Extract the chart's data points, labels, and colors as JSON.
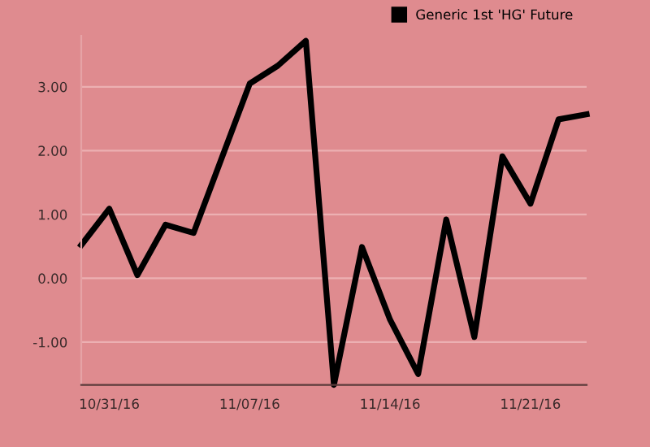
{
  "chart_data": {
    "type": "line",
    "categories": [
      null,
      "10/31/16",
      null,
      null,
      null,
      null,
      "11/07/16",
      null,
      null,
      null,
      null,
      "11/14/16",
      null,
      null,
      null,
      null,
      "11/21/16",
      null,
      null
    ],
    "series": [
      {
        "name": "Generic 1st 'HG' Future",
        "color": "#000000",
        "values": [
          0.52,
          1.09,
          0.05,
          0.84,
          0.71,
          1.88,
          3.05,
          3.33,
          3.72,
          -1.67,
          0.49,
          -0.65,
          -1.5,
          0.92,
          -0.92,
          1.91,
          1.17,
          2.49,
          2.57
        ]
      }
    ],
    "yticks": [
      {
        "value": -1,
        "label": "-1.00"
      },
      {
        "value": 0,
        "label": "0.00"
      },
      {
        "value": 1,
        "label": "1.00"
      },
      {
        "value": 2,
        "label": "2.00"
      },
      {
        "value": 3,
        "label": "3.00"
      }
    ],
    "ylim": [
      -1.67,
      3.8
    ],
    "grid": "y",
    "legend": "top right",
    "marker": "none",
    "line_style": "solid"
  }
}
